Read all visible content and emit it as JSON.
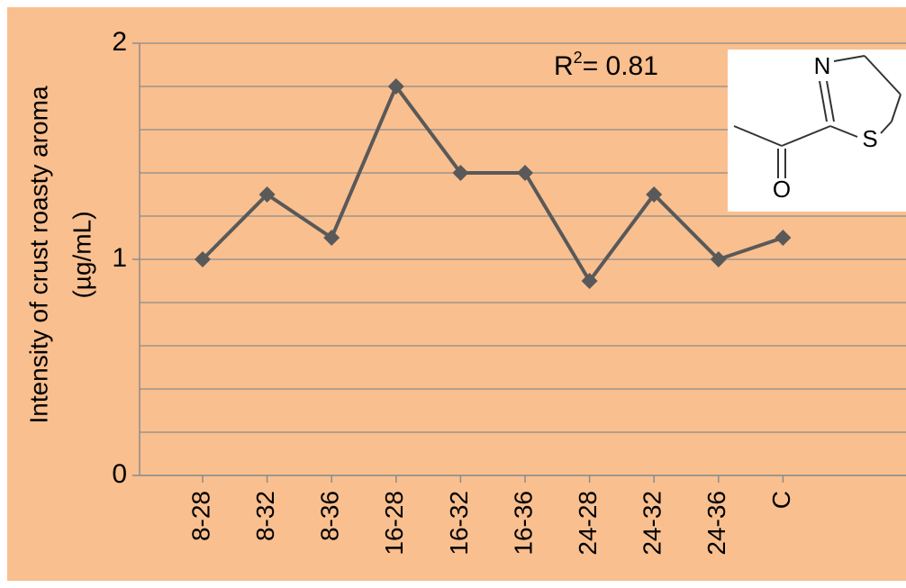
{
  "chart_data": {
    "type": "line",
    "y_label": [
      "Intensity of crust roasty aroma",
      "(µg/mL)"
    ],
    "categories": [
      "8-28",
      "8-32",
      "8-36",
      "16-28",
      "16-32",
      "16-36",
      "24-28",
      "24-32",
      "24-36",
      "C"
    ],
    "category_label_colors": [
      "#000000",
      "#000000",
      "#000000",
      "#000000",
      "#000000",
      "#000000",
      "#000000",
      "#000000",
      "#000000",
      "#c00000"
    ],
    "series": [
      {
        "name": "Intensity",
        "color": "#595959",
        "values": [
          1.0,
          1.3,
          1.1,
          1.8,
          1.4,
          1.4,
          0.9,
          1.3,
          1.0,
          1.1
        ]
      }
    ],
    "ylim": [
      0,
      2
    ],
    "yticks": [
      0,
      1,
      2
    ],
    "minor_yticks": [
      0.2,
      0.4,
      0.6,
      0.8,
      1.2,
      1.4,
      1.6,
      1.8
    ],
    "grid": true,
    "annotation": {
      "prefix": "R",
      "sup": "2",
      "text": "= 0.81"
    },
    "structure_atoms": [
      "N",
      "S",
      "O"
    ]
  }
}
